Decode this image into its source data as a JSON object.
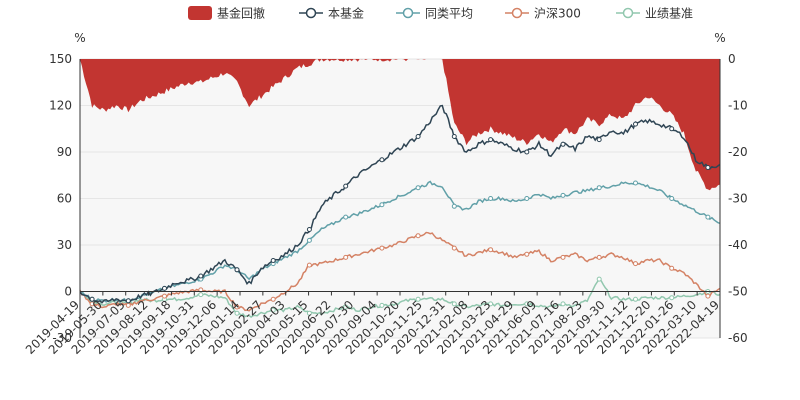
{
  "chart_data": {
    "type": "line",
    "y_unit_left": "%",
    "y_unit_right": "%",
    "left_axis": {
      "min": -30,
      "max": 150,
      "ticks": [
        "-30",
        "0",
        "30",
        "60",
        "90",
        "120",
        "150"
      ]
    },
    "right_axis": {
      "min": -60,
      "max": 0,
      "ticks": [
        "-60",
        "-50",
        "-40",
        "-30",
        "-20",
        "-10",
        "0"
      ]
    },
    "x_tick_labels": [
      "2019-04-19",
      "2019-05-30",
      "2019-07-05",
      "2019-08-12",
      "2019-09-18",
      "2019-10-31",
      "2019-12-06",
      "2020-01-14",
      "2020-02-27",
      "2020-04-03",
      "2020-05-15",
      "2020-06-22",
      "2020-07-30",
      "2020-09-04",
      "2020-10-20",
      "2020-11-25",
      "2020-12-31",
      "2021-02-08",
      "2021-03-23",
      "2021-04-29",
      "2021-06-09",
      "2021-07-16",
      "2021-08-23",
      "2021-09-30",
      "2021-11-12",
      "2021-12-20",
      "2022-01-26",
      "2022-03-10",
      "2022-04-19"
    ],
    "legend": [
      {
        "name": "基金回撤",
        "color": "#c23531",
        "kind": "area"
      },
      {
        "name": "本基金",
        "color": "#2f4554",
        "kind": "line"
      },
      {
        "name": "同类平均",
        "color": "#61a0a8",
        "kind": "line"
      },
      {
        "name": "沪深300",
        "color": "#d48265",
        "kind": "line"
      },
      {
        "name": "业绩基准",
        "color": "#91c7ae",
        "kind": "line"
      }
    ],
    "series": [
      {
        "name": "本基金",
        "axis": "left",
        "values": [
          0,
          -5,
          -7,
          -5,
          -6,
          -3,
          -1,
          2,
          6,
          7,
          10,
          15,
          20,
          14,
          5,
          15,
          20,
          24,
          30,
          40,
          55,
          62,
          68,
          75,
          80,
          85,
          90,
          95,
          100,
          110,
          120,
          100,
          90,
          95,
          98,
          95,
          92,
          90,
          95,
          88,
          95,
          92,
          100,
          98,
          104,
          102,
          108,
          110,
          108,
          105,
          100,
          85,
          80,
          82
        ]
      },
      {
        "name": "同类平均",
        "axis": "left",
        "values": [
          0,
          -5,
          -6,
          -5,
          -6,
          -3,
          -1,
          2,
          4,
          6,
          8,
          12,
          17,
          14,
          8,
          14,
          18,
          22,
          26,
          33,
          40,
          44,
          48,
          50,
          53,
          56,
          60,
          63,
          67,
          70,
          68,
          55,
          53,
          58,
          60,
          60,
          58,
          60,
          63,
          60,
          62,
          64,
          65,
          67,
          68,
          70,
          70,
          68,
          65,
          60,
          56,
          52,
          48,
          44
        ]
      },
      {
        "name": "沪深300",
        "axis": "left",
        "values": [
          0,
          -8,
          -10,
          -8,
          -9,
          -6,
          -5,
          -3,
          -1,
          0,
          1,
          0,
          0,
          -10,
          -12,
          -8,
          -5,
          0,
          5,
          17,
          18,
          20,
          22,
          24,
          26,
          28,
          30,
          33,
          36,
          38,
          33,
          28,
          23,
          25,
          27,
          25,
          22,
          24,
          26,
          20,
          22,
          24,
          20,
          22,
          24,
          22,
          18,
          20,
          20,
          15,
          12,
          5,
          -3,
          2
        ]
      },
      {
        "name": "业绩基准",
        "axis": "left",
        "values": [
          0,
          -7,
          -8,
          -7,
          -8,
          -5,
          -6,
          -5,
          -5,
          -4,
          -2,
          -3,
          -4,
          -14,
          -16,
          -14,
          -12,
          -12,
          -10,
          -14,
          -14,
          -12,
          -10,
          -12,
          -10,
          -9,
          -8,
          -6,
          -5,
          -5,
          -5,
          -8,
          -10,
          -9,
          -8,
          -9,
          -8,
          -8,
          -9,
          -10,
          -8,
          -9,
          -6,
          8,
          -4,
          -5,
          -5,
          -4,
          -4,
          -4,
          -3,
          -2,
          0,
          -2
        ]
      },
      {
        "name": "基金回撤",
        "axis": "right",
        "values": [
          0,
          -10,
          -11,
          -10,
          -11,
          -9,
          -8,
          -7,
          -6,
          -5,
          -5,
          -4,
          -3,
          -5,
          -10,
          -8,
          -6,
          -4,
          -2,
          -1,
          0,
          0,
          0,
          0,
          0,
          0,
          0,
          0,
          0,
          0,
          0,
          -14,
          -18,
          -16,
          -15,
          -16,
          -17,
          -18,
          -16,
          -18,
          -15,
          -16,
          -13,
          -14,
          -12,
          -13,
          -10,
          -8,
          -10,
          -12,
          -16,
          -24,
          -28,
          -27
        ]
      }
    ]
  }
}
